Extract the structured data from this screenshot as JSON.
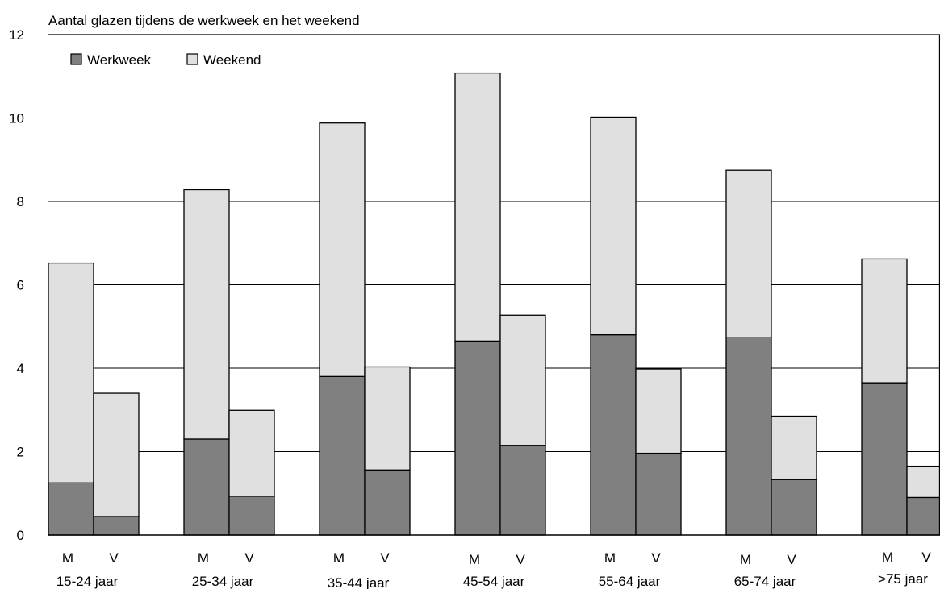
{
  "chart_data": {
    "type": "bar",
    "stacked": true,
    "title": "Aantal glazen tijdens de werkweek en het weekend",
    "xlabel": "",
    "ylabel": "",
    "ylim": [
      0,
      12
    ],
    "yticks": [
      0,
      2,
      4,
      6,
      8,
      10,
      12
    ],
    "grid": true,
    "legend_position": "top-left",
    "groups": [
      "15-24 jaar",
      "25-34 jaar",
      "35-44 jaar",
      "45-54 jaar",
      "55-64 jaar",
      "65-74 jaar",
      ">75 jaar"
    ],
    "sub_categories": [
      "M",
      "V"
    ],
    "series": [
      {
        "name": "Werkweek",
        "color": "#808080",
        "values": [
          1.25,
          0.45,
          2.3,
          0.93,
          3.8,
          1.56,
          4.65,
          2.15,
          4.8,
          1.96,
          4.73,
          1.33,
          3.65,
          0.9
        ]
      },
      {
        "name": "Weekend",
        "color": "#e0e0e0",
        "values": [
          5.27,
          2.95,
          5.98,
          2.06,
          6.08,
          2.47,
          6.43,
          3.12,
          5.22,
          2.02,
          4.02,
          1.52,
          2.97,
          0.75
        ]
      }
    ]
  }
}
